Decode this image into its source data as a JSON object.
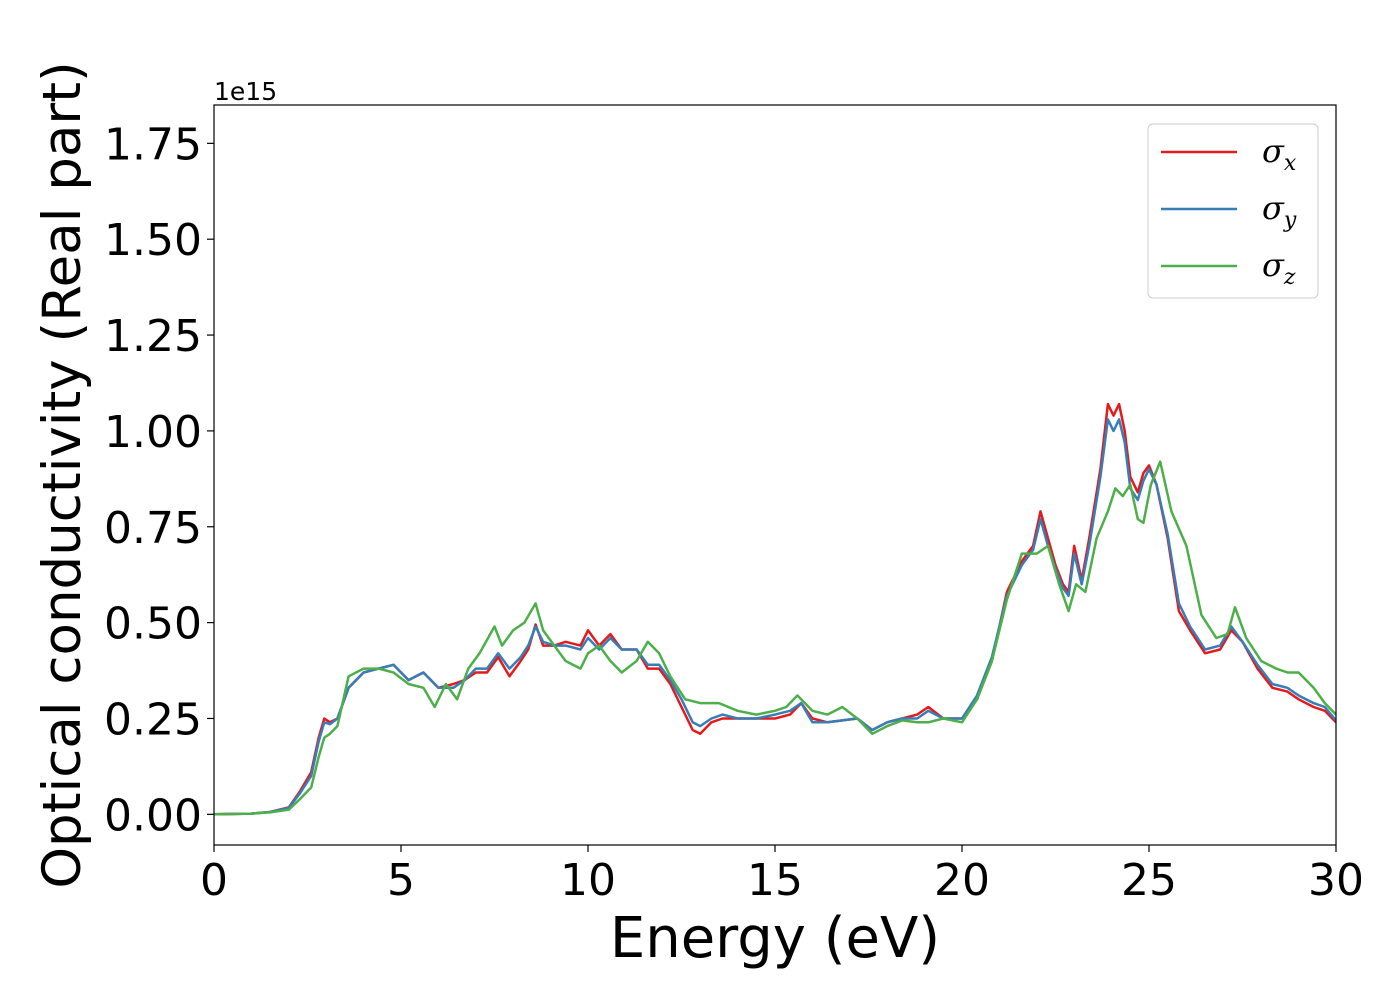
{
  "chart_data": {
    "type": "line",
    "xlabel": "Energy (eV)",
    "ylabel": "Optical conductivity (Real part)",
    "y_offset_text": "1e15",
    "xlim": [
      0,
      30
    ],
    "ylim": [
      -0.08,
      1.85
    ],
    "y_scale_factor": 1000000000000000.0,
    "x_ticks": [
      0,
      5,
      10,
      15,
      20,
      25,
      30
    ],
    "x_tick_labels": [
      "0",
      "5",
      "10",
      "15",
      "20",
      "25",
      "30"
    ],
    "y_ticks": [
      0.0,
      0.25,
      0.5,
      0.75,
      1.0,
      1.25,
      1.5,
      1.75
    ],
    "y_tick_labels": [
      "0.00",
      "0.25",
      "0.50",
      "0.75",
      "1.00",
      "1.25",
      "1.50",
      "1.75"
    ],
    "grid": false,
    "legend_position": "top-right",
    "series": [
      {
        "name": "σx",
        "symbol": "σ",
        "subscript": "x",
        "color": "#e41a1c",
        "x": [
          0,
          1,
          1.5,
          2,
          2.3,
          2.6,
          2.8,
          2.95,
          3.1,
          3.3,
          3.6,
          4,
          4.4,
          4.8,
          5.2,
          5.6,
          6,
          6.4,
          6.7,
          7,
          7.3,
          7.6,
          7.9,
          8.2,
          8.4,
          8.6,
          8.8,
          9.1,
          9.4,
          9.8,
          10,
          10.3,
          10.6,
          10.9,
          11.3,
          11.6,
          11.9,
          12.2,
          12.5,
          12.8,
          13,
          13.3,
          13.6,
          14,
          14.5,
          15,
          15.4,
          15.7,
          16,
          16.4,
          16.8,
          17.2,
          17.6,
          18,
          18.4,
          18.8,
          19.1,
          19.5,
          20,
          20.4,
          20.8,
          21.2,
          21.6,
          21.9,
          22.1,
          22.3,
          22.5,
          22.7,
          22.85,
          23,
          23.2,
          23.4,
          23.7,
          23.9,
          24.05,
          24.2,
          24.35,
          24.5,
          24.7,
          24.85,
          25,
          25.2,
          25.5,
          25.8,
          26.1,
          26.5,
          26.9,
          27.2,
          27.5,
          27.9,
          28.3,
          28.7,
          29,
          29.4,
          29.7,
          30
        ],
        "y": [
          0,
          0.002,
          0.006,
          0.018,
          0.06,
          0.11,
          0.2,
          0.25,
          0.24,
          0.25,
          0.33,
          0.37,
          0.38,
          0.39,
          0.35,
          0.37,
          0.33,
          0.34,
          0.35,
          0.37,
          0.37,
          0.41,
          0.36,
          0.4,
          0.43,
          0.495,
          0.44,
          0.44,
          0.45,
          0.44,
          0.48,
          0.44,
          0.47,
          0.43,
          0.43,
          0.38,
          0.38,
          0.34,
          0.28,
          0.22,
          0.21,
          0.24,
          0.25,
          0.25,
          0.25,
          0.25,
          0.26,
          0.29,
          0.25,
          0.24,
          0.245,
          0.25,
          0.22,
          0.24,
          0.25,
          0.26,
          0.28,
          0.25,
          0.25,
          0.3,
          0.4,
          0.58,
          0.66,
          0.7,
          0.79,
          0.72,
          0.65,
          0.6,
          0.58,
          0.7,
          0.61,
          0.72,
          0.9,
          1.07,
          1.04,
          1.07,
          1.0,
          0.88,
          0.84,
          0.89,
          0.91,
          0.86,
          0.72,
          0.53,
          0.48,
          0.42,
          0.43,
          0.48,
          0.45,
          0.38,
          0.33,
          0.32,
          0.3,
          0.28,
          0.27,
          0.24
        ]
      },
      {
        "name": "σy",
        "symbol": "σ",
        "subscript": "y",
        "color": "#377eb8",
        "x": [
          0,
          1,
          1.5,
          2,
          2.3,
          2.6,
          2.8,
          2.95,
          3.1,
          3.3,
          3.6,
          4,
          4.4,
          4.8,
          5.2,
          5.6,
          6,
          6.4,
          6.7,
          7,
          7.3,
          7.6,
          7.9,
          8.2,
          8.4,
          8.6,
          8.8,
          9.1,
          9.4,
          9.8,
          10,
          10.3,
          10.6,
          10.9,
          11.3,
          11.6,
          11.9,
          12.2,
          12.5,
          12.8,
          13,
          13.3,
          13.6,
          14,
          14.5,
          15,
          15.4,
          15.7,
          16,
          16.4,
          16.8,
          17.2,
          17.6,
          18,
          18.4,
          18.8,
          19.1,
          19.5,
          20,
          20.4,
          20.8,
          21.2,
          21.6,
          21.9,
          22.1,
          22.3,
          22.5,
          22.7,
          22.85,
          23,
          23.2,
          23.4,
          23.7,
          23.9,
          24.05,
          24.2,
          24.35,
          24.5,
          24.7,
          24.85,
          25,
          25.2,
          25.5,
          25.8,
          26.1,
          26.5,
          26.9,
          27.2,
          27.5,
          27.9,
          28.3,
          28.7,
          29,
          29.4,
          29.7,
          30
        ],
        "y": [
          0,
          0.002,
          0.006,
          0.017,
          0.055,
          0.1,
          0.19,
          0.24,
          0.235,
          0.25,
          0.33,
          0.37,
          0.38,
          0.39,
          0.35,
          0.37,
          0.33,
          0.33,
          0.35,
          0.38,
          0.38,
          0.42,
          0.38,
          0.41,
          0.44,
          0.49,
          0.45,
          0.44,
          0.44,
          0.43,
          0.46,
          0.43,
          0.46,
          0.43,
          0.43,
          0.39,
          0.39,
          0.35,
          0.3,
          0.24,
          0.23,
          0.25,
          0.26,
          0.25,
          0.25,
          0.26,
          0.27,
          0.29,
          0.24,
          0.24,
          0.245,
          0.25,
          0.22,
          0.24,
          0.25,
          0.25,
          0.27,
          0.25,
          0.25,
          0.31,
          0.41,
          0.57,
          0.65,
          0.69,
          0.77,
          0.7,
          0.64,
          0.59,
          0.57,
          0.68,
          0.6,
          0.7,
          0.88,
          1.03,
          1.0,
          1.03,
          0.97,
          0.85,
          0.82,
          0.87,
          0.9,
          0.86,
          0.73,
          0.55,
          0.49,
          0.43,
          0.44,
          0.49,
          0.45,
          0.39,
          0.34,
          0.33,
          0.31,
          0.29,
          0.28,
          0.245
        ]
      },
      {
        "name": "σz",
        "symbol": "σ",
        "subscript": "z",
        "color": "#4daf4a",
        "x": [
          0,
          1,
          1.5,
          2,
          2.3,
          2.6,
          2.8,
          2.95,
          3.1,
          3.3,
          3.6,
          4,
          4.4,
          4.8,
          5.2,
          5.6,
          5.9,
          6.2,
          6.5,
          6.8,
          7.1,
          7.5,
          7.7,
          8,
          8.3,
          8.6,
          8.8,
          9.1,
          9.4,
          9.8,
          10,
          10.3,
          10.6,
          10.9,
          11.3,
          11.6,
          11.9,
          12.2,
          12.6,
          13,
          13.5,
          14,
          14.5,
          15,
          15.3,
          15.6,
          16,
          16.4,
          16.8,
          17.2,
          17.6,
          18,
          18.4,
          18.8,
          19.1,
          19.5,
          20,
          20.4,
          20.8,
          21.2,
          21.6,
          22,
          22.3,
          22.6,
          22.85,
          23.05,
          23.3,
          23.6,
          23.9,
          24.1,
          24.3,
          24.5,
          24.7,
          24.85,
          25.05,
          25.3,
          25.6,
          26,
          26.4,
          26.8,
          27.1,
          27.3,
          27.6,
          28,
          28.4,
          28.7,
          29,
          29.4,
          29.7,
          30
        ],
        "y": [
          0,
          0.002,
          0.005,
          0.012,
          0.04,
          0.07,
          0.15,
          0.2,
          0.21,
          0.23,
          0.36,
          0.38,
          0.38,
          0.37,
          0.34,
          0.33,
          0.28,
          0.34,
          0.3,
          0.38,
          0.42,
          0.49,
          0.44,
          0.48,
          0.5,
          0.55,
          0.48,
          0.44,
          0.4,
          0.38,
          0.42,
          0.44,
          0.4,
          0.37,
          0.4,
          0.45,
          0.42,
          0.36,
          0.3,
          0.29,
          0.29,
          0.27,
          0.26,
          0.27,
          0.28,
          0.31,
          0.27,
          0.26,
          0.28,
          0.25,
          0.21,
          0.23,
          0.245,
          0.24,
          0.24,
          0.25,
          0.24,
          0.3,
          0.4,
          0.56,
          0.68,
          0.68,
          0.7,
          0.6,
          0.53,
          0.6,
          0.58,
          0.72,
          0.79,
          0.85,
          0.83,
          0.86,
          0.77,
          0.76,
          0.86,
          0.92,
          0.79,
          0.7,
          0.52,
          0.46,
          0.47,
          0.54,
          0.46,
          0.4,
          0.38,
          0.37,
          0.37,
          0.33,
          0.29,
          0.26
        ]
      }
    ]
  }
}
